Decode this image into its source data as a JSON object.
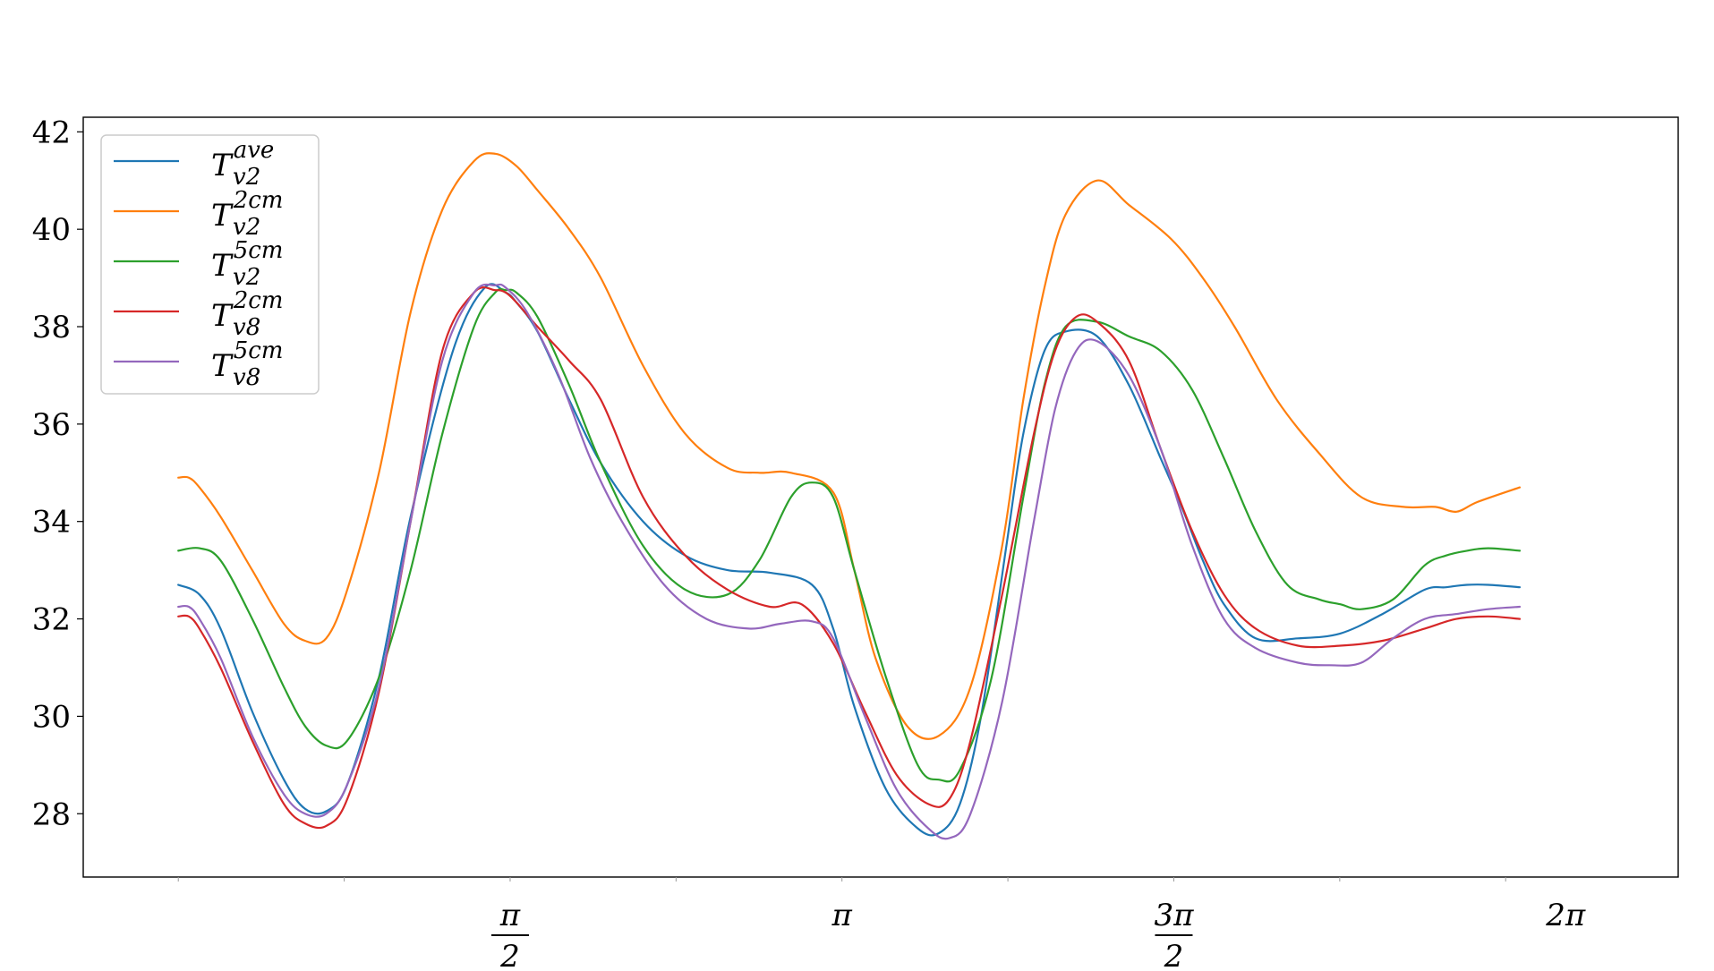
{
  "chart_data": {
    "type": "line",
    "title": "",
    "xlabel": "",
    "ylabel": "",
    "xlim": [
      -0.45,
      7.1
    ],
    "ylim": [
      26.7,
      42.3
    ],
    "grid": false,
    "legend_placement": "top-left",
    "yticks": [
      28,
      30,
      32,
      34,
      36,
      38,
      40,
      42
    ],
    "ytick_labels": [
      "28",
      "30",
      "32",
      "34",
      "36",
      "38",
      "40",
      "42"
    ],
    "xticks_major": [
      {
        "value": 1.5708,
        "num": "π",
        "den": "2"
      },
      {
        "value": 3.1416,
        "num": "π",
        "den": ""
      },
      {
        "value": 4.7124,
        "num": "3π",
        "den": "2"
      },
      {
        "value": 6.2832,
        "num": "2π",
        "den": ""
      }
    ],
    "xticks_minor": [
      0,
      0.7854,
      2.3562,
      3.927,
      5.4978
    ],
    "series": [
      {
        "name": "T",
        "sub": "v2",
        "sup": "ave",
        "color": "#1f77b4",
        "x": [
          0,
          0.1,
          0.2,
          0.35,
          0.5,
          0.6,
          0.7,
          0.8,
          0.95,
          1.1,
          1.3,
          1.45,
          1.55,
          1.6,
          1.7,
          1.85,
          2.0,
          2.2,
          2.4,
          2.6,
          2.8,
          3.0,
          3.1,
          3.2,
          3.35,
          3.5,
          3.6,
          3.7,
          3.8,
          3.92,
          4.0,
          4.1,
          4.2,
          4.35,
          4.5,
          4.65,
          4.75,
          4.85,
          4.95,
          5.1,
          5.3,
          5.5,
          5.7,
          5.9,
          6.0,
          6.1,
          6.2,
          6.35
        ],
        "y": [
          32.7,
          32.5,
          31.8,
          30.1,
          28.7,
          28.1,
          28.05,
          28.6,
          30.8,
          34.1,
          37.5,
          38.8,
          38.7,
          38.5,
          37.9,
          36.5,
          35.2,
          34.0,
          33.3,
          33.0,
          32.95,
          32.7,
          31.8,
          30.2,
          28.5,
          27.7,
          27.6,
          28.2,
          30.0,
          33.5,
          35.8,
          37.5,
          37.9,
          37.8,
          36.8,
          35.3,
          34.3,
          33.2,
          32.3,
          31.6,
          31.6,
          31.7,
          32.1,
          32.6,
          32.65,
          32.7,
          32.7,
          32.65
        ]
      },
      {
        "name": "T",
        "sub": "v2",
        "sup": "2cm",
        "color": "#ff7f0e",
        "x": [
          0,
          0.05,
          0.1,
          0.2,
          0.35,
          0.5,
          0.6,
          0.7,
          0.8,
          0.95,
          1.1,
          1.25,
          1.4,
          1.5,
          1.6,
          1.7,
          1.85,
          2.0,
          2.2,
          2.4,
          2.6,
          2.75,
          2.9,
          3.1,
          3.2,
          3.3,
          3.45,
          3.6,
          3.75,
          3.9,
          4.0,
          4.1,
          4.2,
          4.35,
          4.5,
          4.7,
          4.85,
          5.0,
          5.2,
          5.4,
          5.6,
          5.8,
          5.95,
          6.05,
          6.15,
          6.35
        ],
        "y": [
          34.9,
          34.9,
          34.7,
          34.1,
          33.0,
          31.9,
          31.55,
          31.6,
          32.6,
          35.0,
          38.3,
          40.4,
          41.4,
          41.55,
          41.3,
          40.8,
          40.0,
          39.0,
          37.2,
          35.8,
          35.1,
          35.0,
          35.0,
          34.6,
          33.0,
          31.2,
          29.8,
          29.6,
          30.6,
          33.5,
          36.5,
          38.8,
          40.3,
          41.0,
          40.5,
          39.8,
          39.0,
          38.0,
          36.5,
          35.4,
          34.5,
          34.3,
          34.3,
          34.2,
          34.4,
          34.7
        ]
      },
      {
        "name": "T",
        "sub": "v2",
        "sup": "5cm",
        "color": "#2ca02c",
        "x": [
          0,
          0.1,
          0.2,
          0.35,
          0.5,
          0.6,
          0.7,
          0.8,
          0.95,
          1.1,
          1.25,
          1.4,
          1.5,
          1.55,
          1.6,
          1.7,
          1.85,
          2.0,
          2.2,
          2.4,
          2.6,
          2.75,
          2.9,
          3.0,
          3.1,
          3.2,
          3.35,
          3.5,
          3.6,
          3.7,
          3.85,
          4.0,
          4.1,
          4.2,
          4.35,
          4.5,
          4.65,
          4.8,
          4.95,
          5.1,
          5.25,
          5.4,
          5.5,
          5.6,
          5.75,
          5.9,
          6.0,
          6.1,
          6.2,
          6.35
        ],
        "y": [
          33.4,
          33.45,
          33.2,
          32.0,
          30.6,
          29.8,
          29.4,
          29.5,
          30.8,
          33.0,
          35.8,
          38.0,
          38.7,
          38.75,
          38.7,
          38.2,
          36.8,
          35.2,
          33.5,
          32.6,
          32.5,
          33.2,
          34.5,
          34.8,
          34.5,
          33.0,
          30.8,
          29.0,
          28.7,
          28.9,
          30.8,
          34.5,
          36.8,
          38.0,
          38.1,
          37.8,
          37.5,
          36.7,
          35.3,
          33.8,
          32.7,
          32.4,
          32.3,
          32.2,
          32.4,
          33.1,
          33.3,
          33.4,
          33.45,
          33.4
        ]
      },
      {
        "name": "T",
        "sub": "v8",
        "sup": "2cm",
        "color": "#d62728",
        "x": [
          0,
          0.05,
          0.1,
          0.2,
          0.35,
          0.5,
          0.6,
          0.7,
          0.8,
          0.95,
          1.1,
          1.25,
          1.4,
          1.5,
          1.55,
          1.6,
          1.7,
          1.85,
          2.0,
          2.2,
          2.4,
          2.6,
          2.8,
          2.95,
          3.1,
          3.25,
          3.4,
          3.55,
          3.65,
          3.75,
          3.9,
          4.05,
          4.15,
          4.25,
          4.35,
          4.5,
          4.65,
          4.8,
          4.95,
          5.1,
          5.3,
          5.5,
          5.7,
          5.9,
          6.05,
          6.2,
          6.35
        ],
        "y": [
          32.05,
          32.05,
          31.8,
          31.0,
          29.5,
          28.2,
          27.8,
          27.75,
          28.3,
          30.5,
          34.0,
          37.5,
          38.7,
          38.75,
          38.7,
          38.5,
          38.0,
          37.3,
          36.5,
          34.5,
          33.3,
          32.6,
          32.25,
          32.3,
          31.5,
          30.1,
          28.8,
          28.2,
          28.3,
          29.5,
          32.5,
          35.8,
          37.5,
          38.2,
          38.1,
          37.3,
          35.5,
          33.8,
          32.5,
          31.8,
          31.45,
          31.45,
          31.55,
          31.8,
          32.0,
          32.05,
          32.0
        ]
      },
      {
        "name": "T",
        "sub": "v8",
        "sup": "5cm",
        "color": "#9467bd",
        "x": [
          0,
          0.05,
          0.1,
          0.2,
          0.35,
          0.5,
          0.6,
          0.7,
          0.8,
          0.95,
          1.1,
          1.25,
          1.4,
          1.5,
          1.55,
          1.65,
          1.8,
          1.95,
          2.1,
          2.3,
          2.5,
          2.7,
          2.85,
          3.0,
          3.1,
          3.25,
          3.4,
          3.55,
          3.65,
          3.75,
          3.9,
          4.05,
          4.15,
          4.25,
          4.35,
          4.5,
          4.65,
          4.8,
          4.95,
          5.1,
          5.3,
          5.45,
          5.6,
          5.75,
          5.9,
          6.05,
          6.2,
          6.35
        ],
        "y": [
          32.25,
          32.25,
          32.0,
          31.2,
          29.6,
          28.4,
          28.0,
          28.0,
          28.6,
          30.6,
          34.0,
          37.3,
          38.7,
          38.85,
          38.8,
          38.3,
          37.0,
          35.3,
          34.0,
          32.7,
          32.0,
          31.8,
          31.9,
          31.95,
          31.6,
          30.0,
          28.5,
          27.7,
          27.5,
          28.0,
          30.3,
          34.0,
          36.3,
          37.5,
          37.7,
          37.0,
          35.5,
          33.5,
          32.0,
          31.4,
          31.1,
          31.05,
          31.1,
          31.6,
          32.0,
          32.1,
          32.2,
          32.25
        ]
      }
    ]
  }
}
